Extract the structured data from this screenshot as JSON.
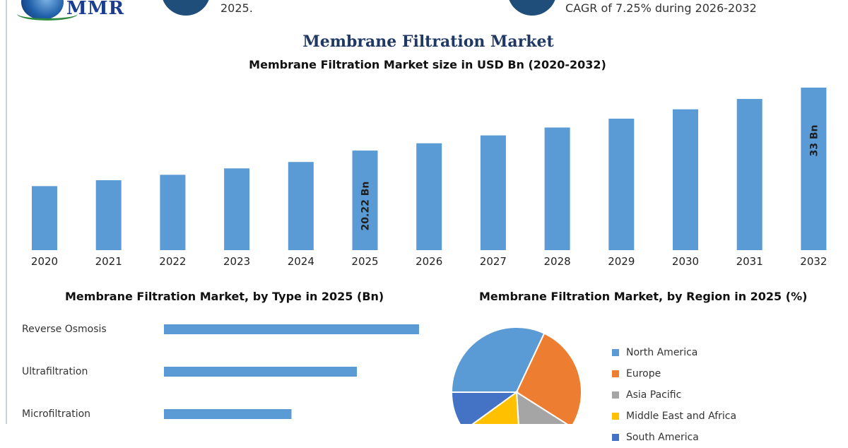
{
  "header": {
    "logo_text": "MMR",
    "left_text": "2025.",
    "right_text": "CAGR of 7.25% during 2026-2032"
  },
  "colors": {
    "bar": "#5b9bd5",
    "title": "#1f3864",
    "north_america": "#5b9bd5",
    "europe": "#ed7d31",
    "asia_pacific": "#a5a5a5",
    "middle_east_africa": "#ffc000",
    "south_america": "#4472c4"
  },
  "icons": [
    "globe-icon"
  ],
  "title": "Membrane Filtration Market",
  "chart_data": [
    {
      "type": "bar",
      "title": "Membrane Filtration Market size in USD Bn (2020-2032)",
      "categories": [
        "2020",
        "2021",
        "2022",
        "2023",
        "2024",
        "2025",
        "2026",
        "2027",
        "2028",
        "2029",
        "2030",
        "2031",
        "2032"
      ],
      "values": [
        13.0,
        14.2,
        15.3,
        16.6,
        17.9,
        20.22,
        21.7,
        23.3,
        24.9,
        26.7,
        28.6,
        30.7,
        33
      ],
      "data_labels": {
        "5": "20.22 Bn",
        "12": "33 Bn"
      },
      "ylim": [
        0,
        35
      ],
      "grid": false
    },
    {
      "type": "bar",
      "orientation": "horizontal",
      "title": "Membrane Filtration Market, by Type in 2025 (Bn)",
      "categories": [
        "Reverse Osmosis",
        "Ultrafiltration",
        "Microfiltration"
      ],
      "values": [
        7.8,
        5.9,
        3.9
      ],
      "xlim": [
        0,
        8
      ]
    },
    {
      "type": "pie",
      "title": "Membrane Filtration Market, by Region in 2025 (%)",
      "labels": [
        "North America",
        "Europe",
        "Asia Pacific",
        "Middle East and Africa",
        "South America"
      ],
      "values": [
        32,
        27,
        15,
        16,
        10
      ],
      "legend_position": "right"
    }
  ]
}
